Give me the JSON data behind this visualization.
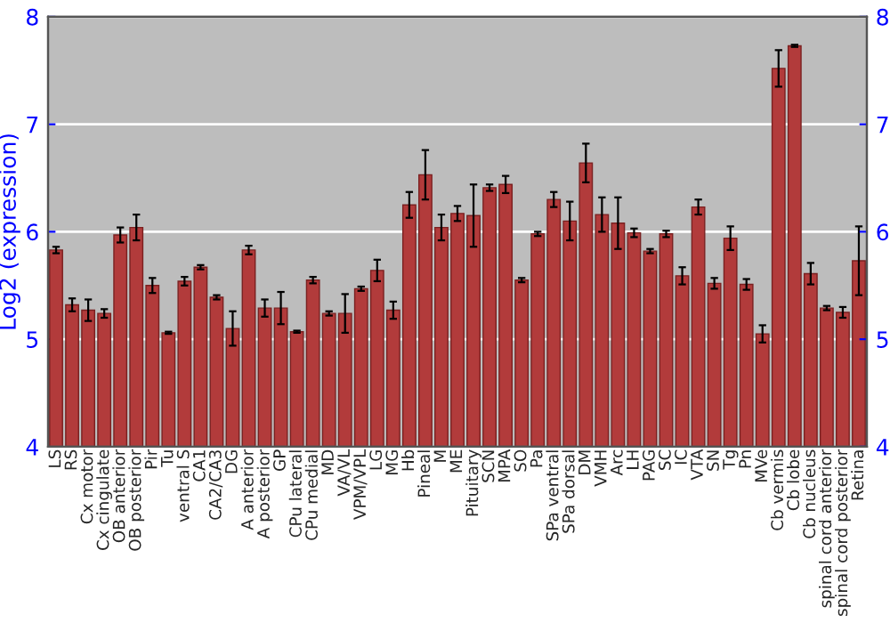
{
  "chart_data": {
    "type": "bar",
    "ylabel": "Log2 (expression)",
    "categories": [
      "LS",
      "RS",
      "Cx motor",
      "Cx cingulate",
      "OB anterior",
      "OB posterior",
      "Pir",
      "Tu",
      "ventral S",
      "CA1",
      "CA2/CA3",
      "DG",
      "A anterior",
      "A posterior",
      "GP",
      "CPu lateral",
      "CPu medial",
      "MD",
      "VA/VL",
      "VPM/VPL",
      "LG",
      "MG",
      "Hb",
      "Pineal",
      "M",
      "ME",
      "Pituitary",
      "SCN",
      "MPA",
      "SO",
      "Pa",
      "SPa ventral",
      "SPa dorsal",
      "DM",
      "VMH",
      "Arc",
      "LH",
      "PAG",
      "SC",
      "IC",
      "VTA",
      "SN",
      "Tg",
      "Pn",
      "MVe",
      "Cb vermis",
      "Cb lobe",
      "Cb nucleus",
      "spinal cord anterior",
      "spinal cord posterior",
      "Retina"
    ],
    "values": [
      5.83,
      5.32,
      5.27,
      5.24,
      5.97,
      6.04,
      5.5,
      5.06,
      5.54,
      5.67,
      5.39,
      5.1,
      5.83,
      5.29,
      5.29,
      5.07,
      5.55,
      5.24,
      5.24,
      5.47,
      5.64,
      5.27,
      6.25,
      6.53,
      6.04,
      6.17,
      6.15,
      6.41,
      6.44,
      5.55,
      5.98,
      6.3,
      6.1,
      6.64,
      6.16,
      6.08,
      5.99,
      5.82,
      5.98,
      5.59,
      6.23,
      5.52,
      5.94,
      5.51,
      5.05,
      7.52,
      7.73,
      5.61,
      5.29,
      5.25,
      5.73
    ],
    "errors": [
      0.03,
      0.06,
      0.1,
      0.04,
      0.07,
      0.12,
      0.07,
      0.01,
      0.04,
      0.02,
      0.02,
      0.16,
      0.04,
      0.08,
      0.15,
      0.01,
      0.03,
      0.02,
      0.18,
      0.02,
      0.1,
      0.08,
      0.12,
      0.23,
      0.12,
      0.07,
      0.29,
      0.03,
      0.08,
      0.02,
      0.02,
      0.07,
      0.18,
      0.18,
      0.16,
      0.24,
      0.04,
      0.02,
      0.03,
      0.08,
      0.07,
      0.05,
      0.11,
      0.05,
      0.08,
      0.17,
      0.01,
      0.1,
      0.02,
      0.05,
      0.32
    ],
    "color": "#b23b3b",
    "ylim": [
      4,
      8
    ],
    "yticks": [
      4,
      5,
      6,
      7,
      8
    ],
    "y2lim": [
      4,
      8
    ],
    "y2ticks": [
      4,
      5,
      6,
      7,
      8
    ],
    "grid": "y"
  }
}
